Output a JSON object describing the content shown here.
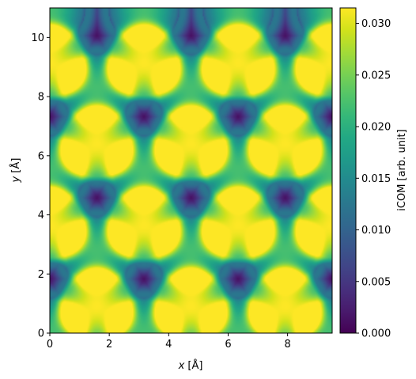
{
  "chart_data": {
    "type": "heatmap",
    "title": "",
    "xlabel_var": "x",
    "xlabel_unit": " [Å]",
    "ylabel_var": "y",
    "ylabel_unit": " [Å]",
    "xlim": [
      0,
      9.5
    ],
    "ylim": [
      0,
      11.0
    ],
    "x_ticks": [
      0,
      2,
      4,
      6,
      8
    ],
    "y_ticks": [
      0,
      2,
      4,
      6,
      8,
      10
    ],
    "colormap": "viridis",
    "colorbar": {
      "label": "iCOM [arb. unit]",
      "min": 0.0,
      "max": 0.0315,
      "ticks": [
        "0.000",
        "0.005",
        "0.010",
        "0.015",
        "0.020",
        "0.025",
        "0.030"
      ],
      "tick_values": [
        0.0,
        0.005,
        0.01,
        0.015,
        0.02,
        0.025,
        0.03
      ]
    },
    "lattice": {
      "a_x": 3.17,
      "b_y": 5.49,
      "peaks_bright": [
        {
          "x": 1.58,
          "y": 0.92
        },
        {
          "x": 4.75,
          "y": 0.92
        },
        {
          "x": 7.92,
          "y": 0.92
        },
        {
          "x": 0.0,
          "y": 3.66
        },
        {
          "x": 3.17,
          "y": 3.66
        },
        {
          "x": 6.34,
          "y": 3.66
        },
        {
          "x": 9.5,
          "y": 3.66
        },
        {
          "x": 1.58,
          "y": 6.41
        },
        {
          "x": 4.75,
          "y": 6.41
        },
        {
          "x": 7.92,
          "y": 6.41
        },
        {
          "x": 0.0,
          "y": 9.15
        },
        {
          "x": 3.17,
          "y": 9.15
        },
        {
          "x": 6.34,
          "y": 9.15
        },
        {
          "x": 9.5,
          "y": 9.15
        }
      ],
      "peaks_medium": [
        {
          "x": 0.0,
          "y": 0.0
        },
        {
          "x": 3.17,
          "y": 0.0
        },
        {
          "x": 6.34,
          "y": 0.0
        },
        {
          "x": 9.5,
          "y": 0.0
        },
        {
          "x": 1.58,
          "y": 2.75
        },
        {
          "x": 4.75,
          "y": 2.75
        },
        {
          "x": 7.92,
          "y": 2.75
        },
        {
          "x": 0.0,
          "y": 5.49
        },
        {
          "x": 3.17,
          "y": 5.49
        },
        {
          "x": 6.34,
          "y": 5.49
        },
        {
          "x": 9.5,
          "y": 5.49
        },
        {
          "x": 1.58,
          "y": 8.24
        },
        {
          "x": 4.75,
          "y": 8.24
        },
        {
          "x": 7.92,
          "y": 8.24
        },
        {
          "x": 0.0,
          "y": 10.98
        },
        {
          "x": 3.17,
          "y": 10.98
        },
        {
          "x": 6.34,
          "y": 10.98
        },
        {
          "x": 9.5,
          "y": 10.98
        }
      ],
      "bright_value": 0.0315,
      "medium_value": 0.022
    }
  }
}
